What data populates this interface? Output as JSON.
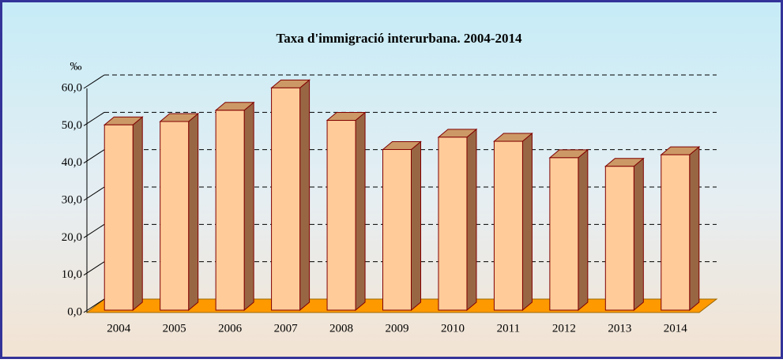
{
  "chart_data": {
    "type": "bar3d",
    "title": "Taxa d'immigració interurbana. 2004-2014",
    "ylabel": "‰",
    "categories": [
      "2004",
      "2005",
      "2006",
      "2007",
      "2008",
      "2009",
      "2010",
      "2011",
      "2012",
      "2013",
      "2014"
    ],
    "values": [
      49.6,
      50.5,
      53.5,
      59.5,
      50.8,
      43.0,
      46.3,
      45.2,
      40.8,
      38.5,
      41.6
    ],
    "color": "#ffcc99",
    "side_color": "#996644",
    "floor_color": "#ff9900",
    "ylim": [
      0,
      60
    ],
    "yticks": [
      {
        "value": 0,
        "label": "0,0"
      },
      {
        "value": 10,
        "label": "10,0"
      },
      {
        "value": 20,
        "label": "20,0"
      },
      {
        "value": 30,
        "label": "30,0"
      },
      {
        "value": 40,
        "label": "40,0"
      },
      {
        "value": 50,
        "label": "50,0"
      },
      {
        "value": 60,
        "label": "60,0"
      }
    ],
    "grid": true
  }
}
